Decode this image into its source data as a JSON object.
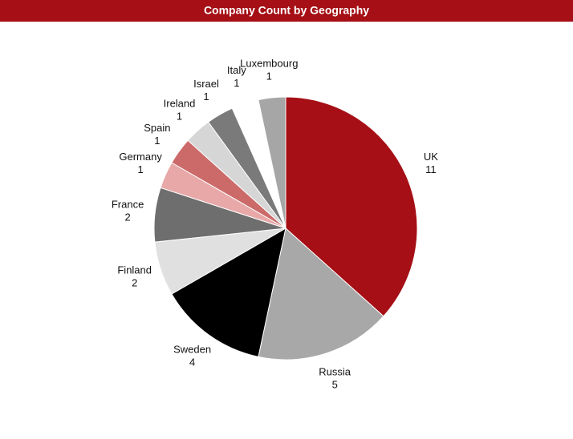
{
  "chart_data": {
    "type": "pie",
    "title": "Company Count by Geography",
    "categories": [
      "UK",
      "Russia",
      "Sweden",
      "Finland",
      "France",
      "Germany",
      "Spain",
      "Ireland",
      "Israel",
      "Italy",
      "Luxembourg"
    ],
    "values": [
      11,
      5,
      4,
      2,
      2,
      1,
      1,
      1,
      1,
      1,
      1
    ],
    "colors": [
      "#a50f15",
      "#a8a8a8",
      "#000000",
      "#e0e0e0",
      "#6e6e6e",
      "#e8a8a8",
      "#cc6a6a",
      "#d6d6d6",
      "#7a7a7a",
      "#ffffff",
      "#a6a6a6"
    ],
    "title_color": "#a50f15"
  }
}
